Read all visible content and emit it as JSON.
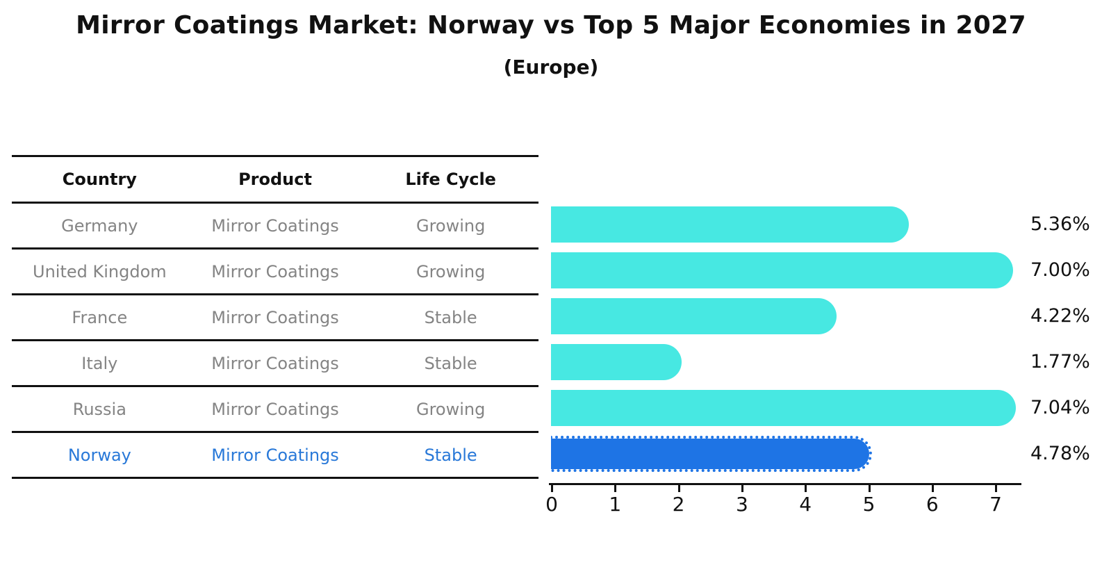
{
  "header": {
    "title": "Mirror Coatings Market: Norway vs Top 5 Major Economies in 2027",
    "subtitle": "(Europe)"
  },
  "table": {
    "columns": [
      "Country",
      "Product",
      "Life Cycle"
    ],
    "rows": [
      {
        "country": "Germany",
        "product": "Mirror Coatings",
        "life_cycle": "Growing",
        "highlight": false
      },
      {
        "country": "United Kingdom",
        "product": "Mirror Coatings",
        "life_cycle": "Growing",
        "highlight": false
      },
      {
        "country": "France",
        "product": "Mirror Coatings",
        "life_cycle": "Stable",
        "highlight": false
      },
      {
        "country": "Italy",
        "product": "Mirror Coatings",
        "life_cycle": "Stable",
        "highlight": false
      },
      {
        "country": "Russia",
        "product": "Mirror Coatings",
        "life_cycle": "Growing",
        "highlight": false
      },
      {
        "country": "Norway",
        "product": "Mirror Coatings",
        "life_cycle": "Stable",
        "highlight": true
      }
    ]
  },
  "chart_data": {
    "type": "bar",
    "orientation": "horizontal",
    "title": "Mirror Coatings Market: Norway vs Top 5 Major Economies in 2027",
    "subtitle": "(Europe)",
    "categories": [
      "Germany",
      "United Kingdom",
      "France",
      "Italy",
      "Russia",
      "Norway"
    ],
    "values": [
      5.36,
      7.0,
      4.22,
      1.77,
      7.04,
      4.78
    ],
    "value_labels": [
      "5.36%",
      "7.00%",
      "4.22%",
      "1.77%",
      "7.04%",
      "4.78%"
    ],
    "x_ticks": [
      0,
      1,
      2,
      3,
      4,
      5,
      6,
      7
    ],
    "xlim": [
      0,
      7.45
    ],
    "grid": false,
    "legend": "none",
    "bar_color": "#47e8e2",
    "highlight_color": "#1e74e5",
    "highlight_text_color": "#2878d8",
    "highlight_index": 5,
    "highlight_style": "dotted-border"
  }
}
